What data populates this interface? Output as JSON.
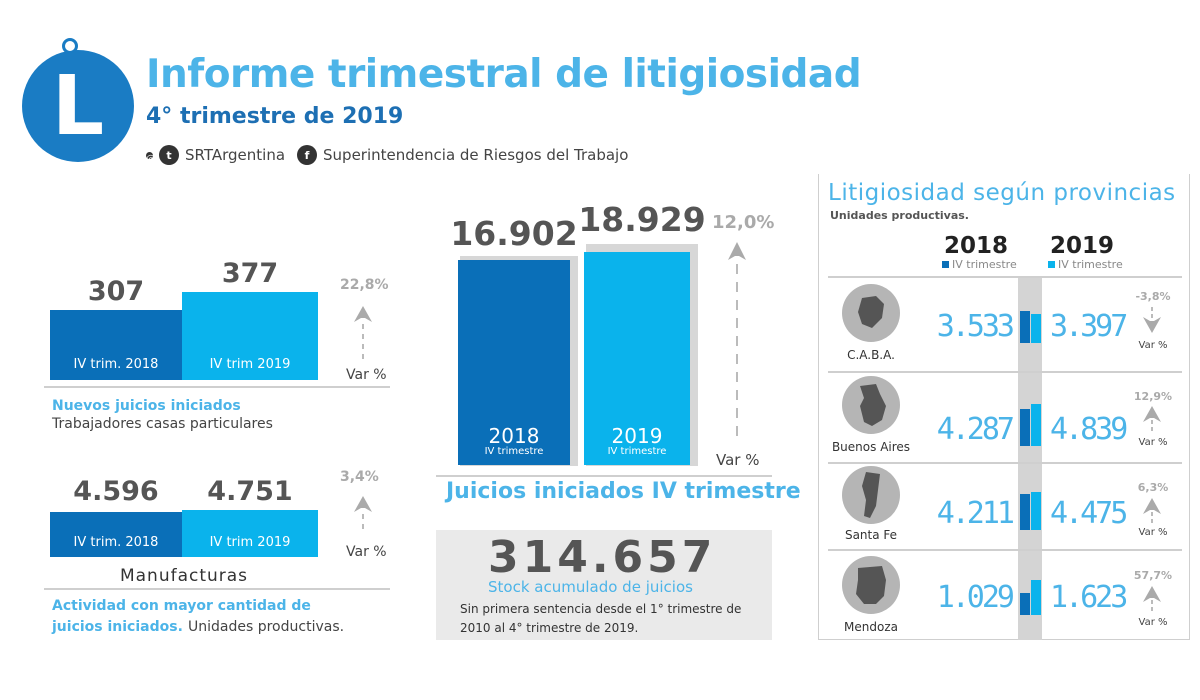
{
  "header": {
    "logo_letter": "L",
    "title": "Informe trimestral de litigiosidad",
    "subtitle": "4° trimestre de 2019",
    "social_handle": "SRTArgentina",
    "social_org": "Superintendencia de Riesgos del Trabajo",
    "icons": [
      "instagram-icon",
      "twitter-icon",
      "facebook-icon"
    ]
  },
  "colors": {
    "dark_blue": "#0a6fb8",
    "light_blue": "#0ab3ec",
    "title_blue": "#4cb4e8"
  },
  "left_top": {
    "val_2018": "307",
    "val_2019": "377",
    "label_2018": "IV trim. 2018",
    "label_2019": "IV trim 2019",
    "pct": "22,8%",
    "var_label": "Var %",
    "caption_blue": "Nuevos juicios iniciados",
    "caption_gray": "Trabajadores casas particulares"
  },
  "left_bottom": {
    "val_2018": "4.596",
    "val_2019": "4.751",
    "label_2018": "IV trim. 2018",
    "label_2019": "IV trim 2019",
    "pct": "3,4%",
    "var_label": "Var %",
    "sector": "Manufacturas",
    "caption_blue_1": "Actividad con mayor cantidad de",
    "caption_blue_2": "juicios iniciados.",
    "caption_gray": "Unidades productivas."
  },
  "middle": {
    "val_2018": "16.902",
    "val_2019": "18.929",
    "year_2018": "2018",
    "year_2019": "2019",
    "sub_2018": "IV trimestre",
    "sub_2019": "IV trimestre",
    "pct": "12,0%",
    "var_label": "Var %",
    "caption": "Juicios iniciados IV trimestre",
    "stock_value": "314.657",
    "stock_caption": "Stock acumulado de juicios",
    "stock_note": "Sin primera sentencia desde el 1° trimestre de 2010 al 4° trimestre de 2019."
  },
  "right": {
    "title": "Litigiosidad según provincias",
    "subtitle": "Unidades productivas.",
    "year_2018": "2018",
    "year_2019": "2019",
    "sub_2018": "IV trimestre",
    "sub_2019": "IV trimestre",
    "provinces": [
      {
        "name": "C.A.B.A.",
        "v2018": "3.533",
        "v2019": "3.397",
        "pct": "-3,8%",
        "var": "Var %",
        "direction": "down"
      },
      {
        "name": "Buenos Aires",
        "v2018": "4.287",
        "v2019": "4.839",
        "pct": "12,9%",
        "var": "Var %",
        "direction": "up"
      },
      {
        "name": "Santa Fe",
        "v2018": "4.211",
        "v2019": "4.475",
        "pct": "6,3%",
        "var": "Var %",
        "direction": "up"
      },
      {
        "name": "Mendoza",
        "v2018": "1.029",
        "v2019": "1.623",
        "pct": "57,7%",
        "var": "Var %",
        "direction": "up"
      }
    ]
  },
  "chart_data": [
    {
      "type": "bar",
      "categories": [
        "IV trim. 2018",
        "IV trim 2019"
      ],
      "values": [
        307,
        377
      ]
    },
    {
      "type": "bar",
      "categories": [
        "IV trim. 2018",
        "IV trim 2019"
      ],
      "values": [
        4596,
        4751
      ]
    },
    {
      "type": "bar",
      "title": "Juicios iniciados IV trimestre",
      "categories": [
        "2018",
        "2019"
      ],
      "values": [
        16902,
        18929
      ]
    },
    {
      "type": "table",
      "title": "Litigiosidad según provincias",
      "categories": [
        "C.A.B.A.",
        "Buenos Aires",
        "Santa Fe",
        "Mendoza"
      ],
      "series": [
        {
          "name": "2018",
          "values": [
            3533,
            4287,
            4211,
            1029
          ]
        },
        {
          "name": "2019",
          "values": [
            3397,
            4839,
            4475,
            1623
          ]
        }
      ]
    }
  ]
}
